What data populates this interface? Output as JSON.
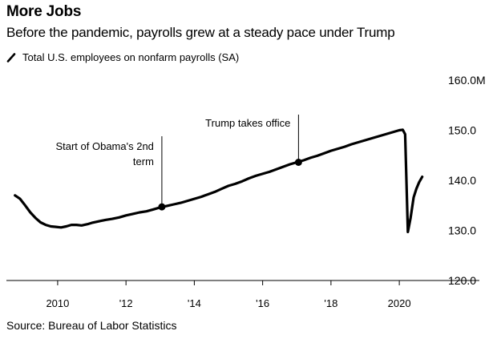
{
  "chart_data": {
    "type": "line",
    "title": "More Jobs",
    "subtitle": "Before the pandemic, payrolls grew at a steady pace under Trump",
    "xlabel": "",
    "ylabel": "",
    "y_unit_suffix": "M",
    "ylim": [
      120,
      160
    ],
    "xlim": [
      2008.5,
      2021.1
    ],
    "y_ticks": [
      160,
      150,
      140,
      130,
      120
    ],
    "y_tick_labels": [
      "160.0M",
      "150.0",
      "140.0",
      "130.0",
      "120.0"
    ],
    "x_ticks": [
      2010,
      2012,
      2014,
      2016,
      2018,
      2020
    ],
    "x_tick_labels": [
      "2010",
      "'12",
      "'14",
      "'16",
      "'18",
      "2020"
    ],
    "grid": false,
    "legend_position": "top-left",
    "series": [
      {
        "name": "Total U.S. employees on nonfarm payrolls (SA)",
        "color": "#000000",
        "points": [
          [
            2008.75,
            137.0
          ],
          [
            2008.9,
            136.3
          ],
          [
            2009.05,
            135.0
          ],
          [
            2009.2,
            133.6
          ],
          [
            2009.35,
            132.5
          ],
          [
            2009.5,
            131.6
          ],
          [
            2009.65,
            131.1
          ],
          [
            2009.8,
            130.8
          ],
          [
            2009.95,
            130.7
          ],
          [
            2010.1,
            130.6
          ],
          [
            2010.25,
            130.8
          ],
          [
            2010.4,
            131.1
          ],
          [
            2010.55,
            131.1
          ],
          [
            2010.7,
            131.0
          ],
          [
            2010.9,
            131.3
          ],
          [
            2011.0,
            131.5
          ],
          [
            2011.2,
            131.8
          ],
          [
            2011.4,
            132.1
          ],
          [
            2011.6,
            132.3
          ],
          [
            2011.8,
            132.6
          ],
          [
            2012.0,
            133.0
          ],
          [
            2012.2,
            133.3
          ],
          [
            2012.4,
            133.6
          ],
          [
            2012.6,
            133.8
          ],
          [
            2012.8,
            134.2
          ],
          [
            2013.0,
            134.6
          ],
          [
            2013.2,
            134.9
          ],
          [
            2013.4,
            135.2
          ],
          [
            2013.6,
            135.5
          ],
          [
            2013.8,
            135.9
          ],
          [
            2014.0,
            136.3
          ],
          [
            2014.2,
            136.7
          ],
          [
            2014.4,
            137.2
          ],
          [
            2014.6,
            137.7
          ],
          [
            2014.8,
            138.3
          ],
          [
            2015.0,
            138.9
          ],
          [
            2015.2,
            139.3
          ],
          [
            2015.4,
            139.8
          ],
          [
            2015.6,
            140.4
          ],
          [
            2015.8,
            140.9
          ],
          [
            2016.0,
            141.3
          ],
          [
            2016.2,
            141.7
          ],
          [
            2016.4,
            142.2
          ],
          [
            2016.6,
            142.7
          ],
          [
            2016.8,
            143.2
          ],
          [
            2017.0,
            143.6
          ],
          [
            2017.2,
            144.0
          ],
          [
            2017.4,
            144.5
          ],
          [
            2017.6,
            144.9
          ],
          [
            2017.8,
            145.4
          ],
          [
            2018.0,
            145.9
          ],
          [
            2018.2,
            146.3
          ],
          [
            2018.4,
            146.7
          ],
          [
            2018.6,
            147.2
          ],
          [
            2018.8,
            147.6
          ],
          [
            2019.0,
            148.0
          ],
          [
            2019.2,
            148.4
          ],
          [
            2019.4,
            148.8
          ],
          [
            2019.6,
            149.2
          ],
          [
            2019.8,
            149.6
          ],
          [
            2020.0,
            150.0
          ],
          [
            2020.1,
            150.1
          ],
          [
            2020.17,
            149.2
          ],
          [
            2020.25,
            129.7
          ],
          [
            2020.33,
            132.5
          ],
          [
            2020.42,
            136.6
          ],
          [
            2020.5,
            138.3
          ],
          [
            2020.58,
            139.6
          ],
          [
            2020.67,
            140.7
          ]
        ]
      }
    ],
    "annotations": [
      {
        "label": "Start of Obama's 2nd term",
        "lines": [
          "Start of Obama's 2nd",
          "term"
        ],
        "x": 2013.05,
        "y": 134.7,
        "anchor": "end"
      },
      {
        "label": "Trump takes office",
        "lines": [
          "Trump takes office"
        ],
        "x": 2017.05,
        "y": 143.6,
        "anchor": "end"
      }
    ],
    "source": "Source: Bureau of Labor Statistics"
  }
}
